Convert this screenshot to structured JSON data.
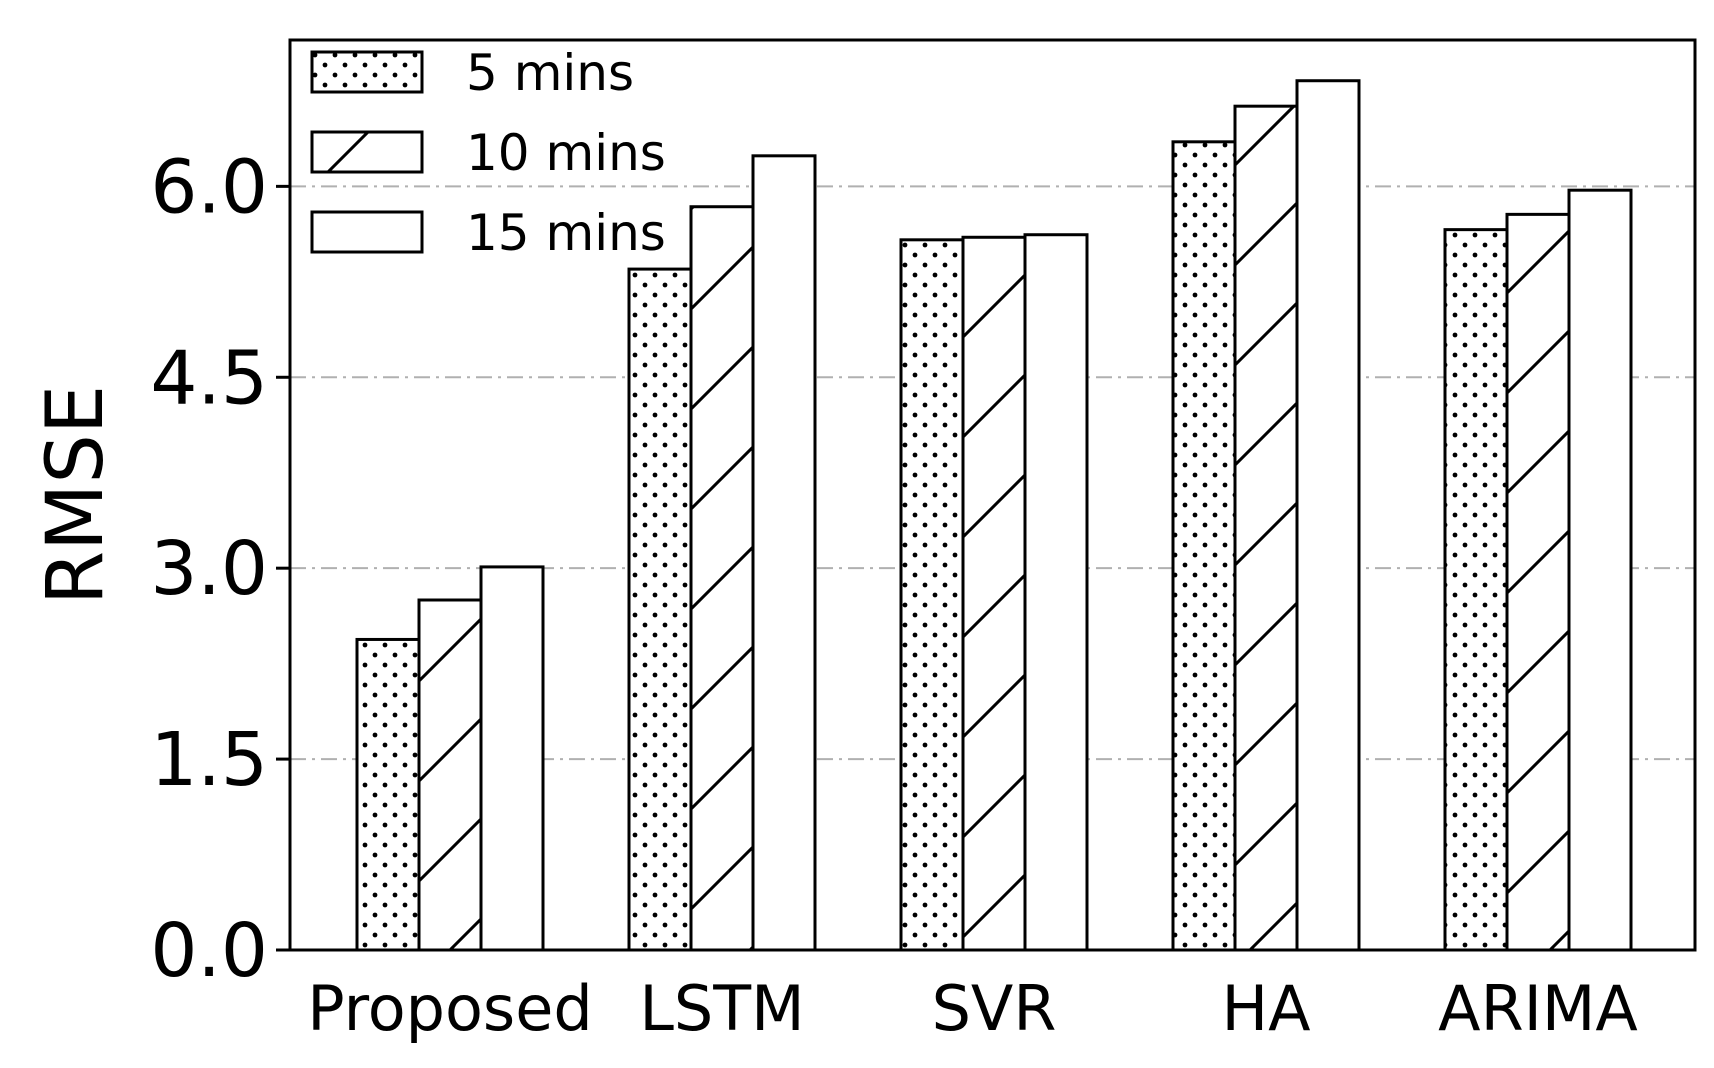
{
  "chart_data": {
    "type": "bar",
    "title": "",
    "xlabel": "",
    "ylabel": "RMSE",
    "ylim": [
      0,
      7.15
    ],
    "yticks": [
      "0.0",
      "1.5",
      "3.0",
      "4.5",
      "6.0"
    ],
    "grid": "y dash-dot",
    "legend_position": "top-left",
    "categories": [
      "Proposed",
      "LSTM",
      "SVR",
      "HA",
      "ARIMA"
    ],
    "series": [
      {
        "name": "5 mins",
        "pattern": "dots",
        "values": [
          2.44,
          5.35,
          5.58,
          6.35,
          5.66
        ]
      },
      {
        "name": "10 mins",
        "pattern": "hatch",
        "values": [
          2.75,
          5.84,
          5.6,
          6.63,
          5.78
        ]
      },
      {
        "name": "15 mins",
        "pattern": "plain",
        "values": [
          3.01,
          6.24,
          5.62,
          6.83,
          5.97
        ]
      }
    ]
  }
}
